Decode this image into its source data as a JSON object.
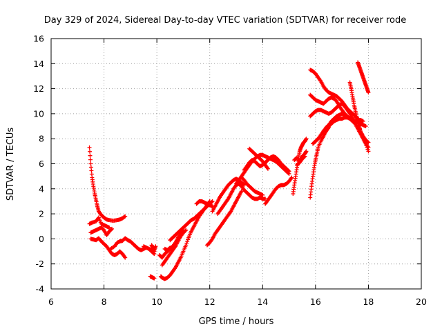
{
  "chart_data": {
    "type": "scatter",
    "title": "Day 329 of 2024, Sidereal Day-to-day VTEC variation (SDTVAR) for receiver rode",
    "xlabel": "GPS time / hours",
    "ylabel": "SDTVAR / TECUs",
    "xlim": [
      6,
      20
    ],
    "ylim": [
      -4,
      16
    ],
    "xticks": [
      6,
      8,
      10,
      12,
      14,
      16,
      18,
      20
    ],
    "yticks": [
      -4,
      -2,
      0,
      2,
      4,
      6,
      8,
      10,
      12,
      14,
      16
    ],
    "xtick_labels": [
      "6",
      "8",
      "10",
      "12",
      "14",
      "16",
      "18",
      "20"
    ],
    "ytick_labels": [
      "-4",
      "-2",
      "0",
      "2",
      "4",
      "6",
      "8",
      "10",
      "12",
      "14",
      "16"
    ],
    "grid": true,
    "marker": "+",
    "color": "#ff0000",
    "series": [
      {
        "x": [
          7.45,
          7.5,
          7.55,
          7.6,
          7.65,
          7.7,
          7.75,
          7.8,
          7.9,
          8.0,
          8.1,
          8.2,
          8.35,
          8.5,
          8.6,
          8.7,
          8.8
        ],
        "y": [
          7.3,
          6.0,
          4.9,
          4.2,
          3.6,
          3.1,
          2.6,
          2.2,
          1.9,
          1.7,
          1.55,
          1.5,
          1.45,
          1.5,
          1.55,
          1.65,
          1.8
        ]
      },
      {
        "x": [
          7.45,
          7.55,
          7.7,
          7.8,
          7.9,
          8.0,
          8.1,
          8.2
        ],
        "y": [
          1.2,
          1.3,
          1.4,
          1.7,
          1.2,
          1.1,
          1.0,
          0.9
        ]
      },
      {
        "x": [
          7.5,
          7.6,
          7.7,
          7.8,
          7.9,
          8.0,
          8.1,
          8.2,
          8.3
        ],
        "y": [
          0.5,
          0.6,
          0.7,
          0.8,
          0.9,
          0.7,
          0.3,
          0.6,
          0.8
        ]
      },
      {
        "x": [
          7.5,
          7.6,
          7.7,
          7.8,
          7.9,
          8.0,
          8.1,
          8.2,
          8.3,
          8.4,
          8.5,
          8.6,
          8.7,
          8.8
        ],
        "y": [
          0.0,
          -0.05,
          -0.1,
          0.05,
          -0.2,
          -0.4,
          -0.6,
          -0.9,
          -1.2,
          -1.3,
          -1.2,
          -1.0,
          -1.2,
          -1.5
        ]
      },
      {
        "x": [
          8.25,
          8.4,
          8.5,
          8.6,
          8.7,
          8.8,
          8.9,
          9.0,
          9.1,
          9.2,
          9.3,
          9.4,
          9.5,
          9.6,
          9.7,
          9.8,
          9.9
        ],
        "y": [
          -0.8,
          -0.6,
          -0.3,
          -0.2,
          -0.15,
          0.05,
          -0.1,
          -0.2,
          -0.4,
          -0.6,
          -0.8,
          -0.9,
          -0.8,
          -0.7,
          -0.8,
          -0.9,
          -1.0
        ]
      },
      {
        "x": [
          9.5,
          9.6,
          9.7,
          9.8,
          9.9
        ],
        "y": [
          -0.6,
          -0.7,
          -0.8,
          -1.0,
          -1.2
        ]
      },
      {
        "x": [
          9.75,
          9.8,
          9.85,
          9.9
        ],
        "y": [
          -3.0,
          -3.05,
          -3.1,
          -3.15
        ]
      },
      {
        "x": [
          9.8,
          9.85,
          9.9,
          9.95
        ],
        "y": [
          -0.5,
          -0.7,
          -0.9,
          -0.6
        ]
      },
      {
        "x": [
          10.15,
          10.2,
          10.3,
          10.4,
          10.5,
          10.6,
          10.7,
          10.8,
          10.9,
          11.0,
          11.1,
          11.2,
          11.3,
          11.4,
          11.5,
          11.6,
          11.7,
          11.8,
          11.9,
          12.0
        ],
        "y": [
          -3.0,
          -3.1,
          -3.2,
          -3.1,
          -2.9,
          -2.6,
          -2.3,
          -1.9,
          -1.5,
          -1.0,
          -0.5,
          0.1,
          0.6,
          1.0,
          1.4,
          1.8,
          2.1,
          2.4,
          2.7,
          3.0
        ]
      },
      {
        "x": [
          10.1,
          10.2,
          10.3,
          10.4,
          10.5,
          10.6,
          10.7,
          10.8,
          10.9,
          11.0
        ],
        "y": [
          -1.3,
          -1.5,
          -1.2,
          -1.0,
          -0.8,
          -0.6,
          -0.3,
          0.1,
          0.4,
          0.6
        ]
      },
      {
        "x": [
          10.2,
          10.3,
          10.4,
          10.5,
          10.6,
          10.7,
          10.8,
          10.9,
          11.0,
          11.1
        ],
        "y": [
          -2.1,
          -1.8,
          -1.5,
          -1.2,
          -0.9,
          -0.6,
          -0.2,
          0.2,
          0.5,
          0.7
        ]
      },
      {
        "x": [
          10.5,
          10.6,
          10.7,
          10.8,
          10.9,
          11.0,
          11.1,
          11.2,
          11.3,
          11.4,
          11.5,
          11.6,
          11.7,
          11.8,
          11.9,
          12.0,
          12.1
        ],
        "y": [
          -0.1,
          0.1,
          0.3,
          0.5,
          0.7,
          0.9,
          1.1,
          1.3,
          1.5,
          1.6,
          1.8,
          2.0,
          2.2,
          2.4,
          2.6,
          2.8,
          3.0
        ]
      },
      {
        "x": [
          10.3,
          10.4,
          10.5
        ],
        "y": [
          -0.8,
          -0.9,
          -0.7
        ]
      },
      {
        "x": [
          11.5,
          11.6,
          11.7,
          11.8,
          11.9,
          12.0,
          12.1
        ],
        "y": [
          2.8,
          3.0,
          3.0,
          2.9,
          2.8,
          2.7,
          2.6
        ]
      },
      {
        "x": [
          11.9,
          12.0,
          12.1,
          12.2,
          12.3,
          12.4,
          12.5,
          12.6,
          12.7,
          12.8,
          12.9,
          13.0,
          13.1,
          13.2
        ],
        "y": [
          -0.5,
          -0.3,
          0.0,
          0.4,
          0.7,
          1.0,
          1.3,
          1.6,
          1.9,
          2.2,
          2.6,
          3.0,
          3.4,
          3.8
        ]
      },
      {
        "x": [
          12.1,
          12.2,
          12.3,
          12.4,
          12.5,
          12.6,
          12.7,
          12.8,
          12.9,
          13.0,
          13.1,
          13.2,
          13.3
        ],
        "y": [
          2.2,
          2.6,
          3.0,
          3.4,
          3.7,
          4.0,
          4.3,
          4.5,
          4.7,
          4.8,
          4.7,
          4.5,
          4.3
        ]
      },
      {
        "x": [
          12.3,
          12.4,
          12.5,
          12.6,
          12.7,
          12.8,
          12.9,
          13.0,
          13.1,
          13.2,
          13.3,
          13.4,
          13.5,
          13.6,
          13.7,
          13.8,
          13.9,
          14.0,
          14.1
        ],
        "y": [
          2.0,
          2.3,
          2.6,
          2.9,
          3.2,
          3.6,
          4.0,
          4.3,
          4.4,
          4.2,
          3.9,
          3.7,
          3.5,
          3.3,
          3.2,
          3.2,
          3.3,
          3.2,
          3.2
        ]
      },
      {
        "x": [
          13.0,
          13.1,
          13.2,
          13.3,
          13.4,
          13.5,
          13.6,
          13.7,
          13.8,
          13.9,
          14.0,
          14.1,
          14.2,
          14.3,
          14.4,
          14.5,
          14.6,
          14.7,
          14.8,
          14.9,
          15.0
        ],
        "y": [
          4.4,
          4.7,
          5.0,
          5.3,
          5.6,
          5.9,
          6.2,
          6.4,
          6.6,
          6.7,
          6.7,
          6.6,
          6.5,
          6.4,
          6.3,
          6.2,
          6.0,
          5.8,
          5.6,
          5.4,
          5.2
        ]
      },
      {
        "x": [
          13.3,
          13.4,
          13.5,
          13.6,
          13.7,
          13.8,
          13.9,
          14.0,
          14.1,
          14.2,
          14.3,
          14.4,
          14.5,
          14.6,
          14.7,
          14.8,
          14.9,
          15.0
        ],
        "y": [
          5.5,
          5.8,
          6.1,
          6.3,
          6.2,
          6.0,
          5.8,
          5.9,
          6.1,
          6.3,
          6.5,
          6.6,
          6.5,
          6.3,
          6.0,
          5.8,
          5.6,
          5.4
        ]
      },
      {
        "x": [
          13.5,
          13.6,
          13.7,
          13.8,
          13.9,
          14.0,
          14.1,
          14.2
        ],
        "y": [
          7.2,
          7.0,
          6.8,
          6.6,
          6.4,
          6.2,
          5.9,
          5.6
        ]
      },
      {
        "x": [
          13.2,
          13.3,
          13.4,
          13.5,
          13.6,
          13.7,
          13.8,
          13.9,
          14.0
        ],
        "y": [
          4.9,
          4.7,
          4.4,
          4.2,
          4.0,
          3.8,
          3.7,
          3.6,
          3.5
        ]
      },
      {
        "x": [
          14.1,
          14.2,
          14.3,
          14.4,
          14.5,
          14.6,
          14.7,
          14.8,
          14.9,
          15.0,
          15.1
        ],
        "y": [
          2.8,
          3.1,
          3.4,
          3.7,
          4.0,
          4.2,
          4.3,
          4.3,
          4.4,
          4.6,
          4.9
        ]
      },
      {
        "x": [
          15.15,
          15.2,
          15.25,
          15.3,
          15.35,
          15.4,
          15.45,
          15.5,
          15.55,
          15.6,
          15.65
        ],
        "y": [
          3.6,
          4.3,
          5.0,
          5.7,
          6.4,
          7.0,
          7.3,
          7.5,
          7.7,
          7.8,
          8.0
        ]
      },
      {
        "x": [
          15.2,
          15.3,
          15.4,
          15.5,
          15.6,
          15.65
        ],
        "y": [
          6.3,
          6.5,
          6.2,
          6.6,
          6.8,
          7.0
        ]
      },
      {
        "x": [
          15.3,
          15.4,
          15.5,
          15.6
        ],
        "y": [
          5.9,
          6.1,
          6.4,
          6.6
        ]
      },
      {
        "x": [
          15.8,
          15.85,
          15.9,
          15.95,
          16.0,
          16.05,
          16.1,
          16.2,
          16.3,
          16.4,
          16.5
        ],
        "y": [
          3.3,
          4.2,
          5.0,
          5.7,
          6.3,
          6.8,
          7.3,
          7.8,
          8.2,
          8.6,
          8.9
        ]
      },
      {
        "x": [
          15.9,
          16.0,
          16.1,
          16.2,
          16.3,
          16.4,
          16.5,
          16.6,
          16.7,
          16.8,
          16.9,
          17.0,
          17.1,
          17.2
        ],
        "y": [
          7.6,
          7.8,
          8.0,
          8.3,
          8.6,
          8.9,
          9.1,
          9.4,
          9.6,
          9.8,
          9.9,
          10.0,
          9.9,
          9.8
        ]
      },
      {
        "x": [
          15.8,
          15.9,
          16.0,
          16.1,
          16.2,
          16.3,
          16.4,
          16.5,
          16.6,
          16.7,
          16.8,
          16.9,
          17.0,
          17.1,
          17.2,
          17.3,
          17.4,
          17.5,
          17.6,
          17.7
        ],
        "y": [
          13.5,
          13.4,
          13.2,
          12.9,
          12.6,
          12.2,
          11.9,
          11.7,
          11.6,
          11.5,
          11.4,
          11.2,
          11.0,
          10.7,
          10.4,
          10.2,
          10.0,
          9.8,
          9.6,
          9.4
        ]
      },
      {
        "x": [
          15.8,
          15.9,
          16.0,
          16.1,
          16.2,
          16.3,
          16.4,
          16.5,
          16.6,
          16.7,
          16.8,
          16.9,
          17.0,
          17.1,
          17.2,
          17.3,
          17.4,
          17.5,
          17.6,
          17.7,
          17.8,
          17.9
        ],
        "y": [
          11.5,
          11.3,
          11.1,
          11.0,
          10.9,
          10.8,
          11.0,
          11.2,
          11.3,
          11.2,
          11.0,
          10.6,
          10.3,
          10.0,
          9.8,
          9.6,
          9.5,
          9.4,
          9.3,
          9.2,
          9.1,
          9.0
        ]
      },
      {
        "x": [
          15.8,
          15.9,
          16.0,
          16.1,
          16.2,
          16.3,
          16.4,
          16.5,
          16.6,
          16.7,
          16.8,
          16.9,
          17.0,
          17.1,
          17.2,
          17.3,
          17.4,
          17.5,
          17.6,
          17.7,
          17.8,
          17.9,
          18.0
        ],
        "y": [
          9.8,
          10.0,
          10.2,
          10.3,
          10.3,
          10.2,
          10.1,
          10.0,
          10.1,
          10.3,
          10.5,
          10.7,
          10.8,
          10.6,
          10.3,
          10.0,
          9.6,
          9.2,
          8.8,
          8.4,
          8.0,
          7.6,
          7.3
        ]
      },
      {
        "x": [
          16.3,
          16.4,
          16.5,
          16.6,
          16.7,
          16.8,
          16.9,
          17.0,
          17.1,
          17.2,
          17.3,
          17.4,
          17.5,
          17.6,
          17.7,
          17.8
        ],
        "y": [
          8.6,
          8.8,
          9.0,
          9.2,
          9.4,
          9.5,
          9.6,
          9.6,
          9.7,
          9.7,
          9.6,
          9.4,
          9.2,
          9.4,
          9.5,
          9.4
        ]
      },
      {
        "x": [
          17.3,
          17.35,
          17.4,
          17.45,
          17.5,
          17.55,
          17.6,
          17.65,
          17.7,
          17.8,
          17.9,
          18.0
        ],
        "y": [
          12.5,
          12.0,
          11.4,
          10.8,
          10.3,
          9.8,
          9.4,
          9.0,
          8.6,
          8.1,
          7.6,
          7.0
        ]
      },
      {
        "x": [
          17.6,
          17.65,
          17.7,
          17.75,
          17.8,
          17.85,
          17.9,
          17.95,
          18.0
        ],
        "y": [
          14.1,
          13.8,
          13.5,
          13.2,
          12.9,
          12.6,
          12.3,
          12.0,
          11.7
        ]
      },
      {
        "x": [
          17.5,
          17.6,
          17.7,
          17.8,
          17.9,
          18.0
        ],
        "y": [
          9.8,
          9.2,
          8.6,
          8.2,
          7.9,
          7.7
        ]
      }
    ]
  }
}
